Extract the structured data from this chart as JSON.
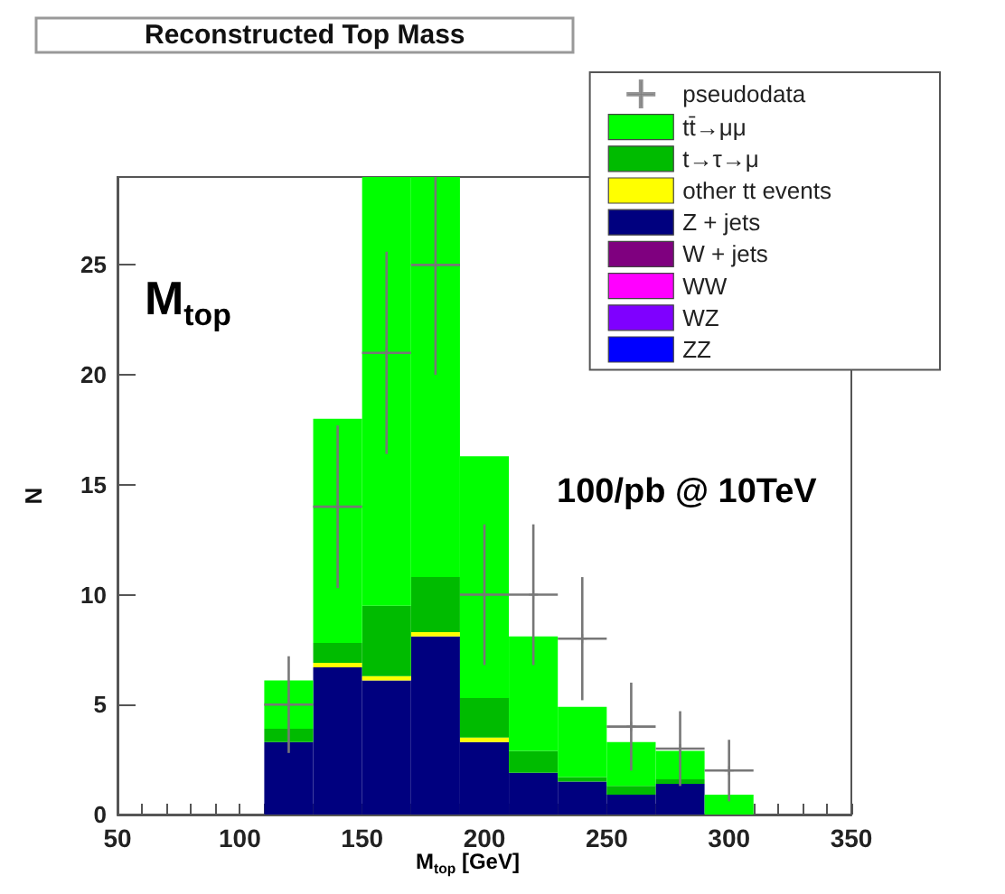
{
  "chart_data": {
    "type": "bar",
    "title": "Reconstructed Top Mass",
    "xlabel": "M$_{top}$ [GeV]",
    "ylabel": "N",
    "annotations": [
      "M$_{top}$",
      "100/pb @ 10TeV"
    ],
    "x": [
      120,
      140,
      160,
      180,
      200,
      220,
      240,
      260,
      280,
      300
    ],
    "stacked": true,
    "series": [
      {
        "name": "ZZ",
        "color": "#0000ff",
        "values": [
          0,
          0,
          0,
          0,
          0,
          0,
          0,
          0,
          0,
          0
        ]
      },
      {
        "name": "WZ",
        "color": "#7f00ff",
        "values": [
          0,
          0,
          0,
          0,
          0,
          0,
          0,
          0,
          0,
          0
        ]
      },
      {
        "name": "WW",
        "color": "#ff00ff",
        "values": [
          0,
          0,
          0,
          0,
          0,
          0,
          0,
          0,
          0,
          0
        ]
      },
      {
        "name": "W + jets",
        "color": "#7f007f",
        "values": [
          0,
          0,
          0,
          0,
          0,
          0,
          0,
          0,
          0,
          0
        ]
      },
      {
        "name": "Z + jets",
        "color": "#00007f",
        "values": [
          3.3,
          6.7,
          6.1,
          8.1,
          3.3,
          1.9,
          1.5,
          0.9,
          1.4,
          0
        ]
      },
      {
        "name": "other tt events",
        "color": "#ffff00",
        "values": [
          0,
          0.2,
          0.2,
          0.2,
          0.2,
          0,
          0,
          0,
          0,
          0
        ]
      },
      {
        "name": "t→τ→μ",
        "color": "#00bb00",
        "values": [
          0.6,
          0.9,
          3.2,
          2.5,
          1.8,
          1.0,
          0.2,
          0.4,
          0.2,
          0
        ]
      },
      {
        "name": "tt̄→μμ",
        "color": "#00ff00",
        "values": [
          2.2,
          10.2,
          19.5,
          18.2,
          11.0,
          5.2,
          3.2,
          2.0,
          1.3,
          0.9
        ]
      },
      {
        "name": "pseudodata",
        "type": "scatter",
        "marker": "cross",
        "color": "#777777",
        "x": [
          120,
          140,
          160,
          180,
          200,
          220,
          240,
          260,
          280,
          300
        ],
        "values": [
          5,
          14,
          21,
          25,
          10,
          10,
          8,
          4,
          3,
          2
        ],
        "errors": [
          2.2,
          3.7,
          4.6,
          5,
          3.2,
          3.2,
          2.8,
          2,
          1.7,
          1.4
        ],
        "xerrors": [
          10,
          10,
          10,
          10,
          10,
          10,
          10,
          10,
          10,
          10
        ]
      }
    ],
    "xlim": [
      50,
      350
    ],
    "xticks": [
      50,
      {
        "value": 60,
        "label": null
      },
      {
        "value": 70,
        "label": null
      },
      {
        "value": 80,
        "label": null
      },
      {
        "value": 90,
        "label": null
      },
      100,
      {
        "value": 110,
        "label": null
      },
      {
        "value": 120,
        "label": null
      },
      {
        "value": 130,
        "label": null
      },
      {
        "value": 140,
        "label": null
      },
      150,
      {
        "value": 160,
        "label": null
      },
      {
        "value": 170,
        "label": null
      },
      {
        "value": 180,
        "label": null
      },
      {
        "value": 190,
        "label": null
      },
      200,
      {
        "value": 210,
        "label": null
      },
      {
        "value": 220,
        "label": null
      },
      {
        "value": 230,
        "label": null
      },
      {
        "value": 240,
        "label": null
      },
      250,
      {
        "value": 260,
        "label": null
      },
      {
        "value": 270,
        "label": null
      },
      {
        "value": 280,
        "label": null
      },
      {
        "value": 290,
        "label": null
      },
      300,
      {
        "value": 310,
        "label": null
      },
      {
        "value": 320,
        "label": null
      },
      {
        "value": 330,
        "label": null
      },
      {
        "value": 340,
        "label": null
      },
      350
    ],
    "ylim": [
      0,
      29
    ],
    "yticks": [
      0,
      5,
      10,
      15,
      20,
      25
    ],
    "grid": false,
    "legend": "top right"
  }
}
